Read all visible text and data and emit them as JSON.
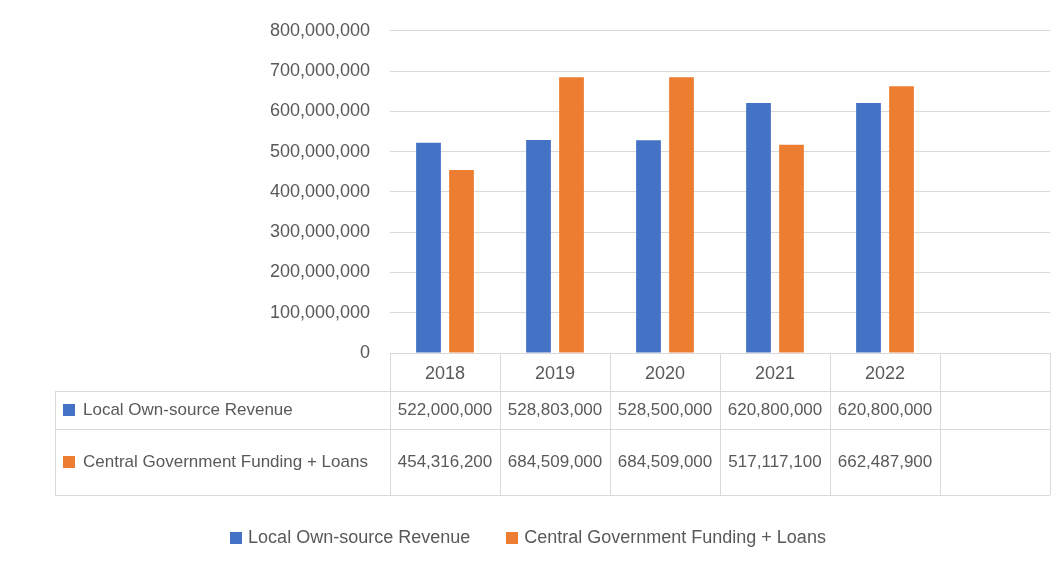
{
  "chart_data": {
    "type": "bar",
    "categories": [
      "2018",
      "2019",
      "2020",
      "2021",
      "2022",
      null
    ],
    "series": [
      {
        "name": "Local Own-source Revenue",
        "color": "#4472c4",
        "values": [
          522000000,
          528803000,
          528500000,
          620800000,
          620800000,
          null
        ],
        "value_labels": [
          "522,000,000",
          "528,803,000",
          "528,500,000",
          "620,800,000",
          "620,800,000",
          null
        ]
      },
      {
        "name": "Central Government Funding + Loans",
        "color": "#ed7d31",
        "values": [
          454316200,
          684509000,
          684509000,
          517117100,
          662487900,
          null
        ],
        "value_labels": [
          "454,316,200",
          "684,509,000",
          "684,509,000",
          "517,117,100",
          "662,487,900",
          null
        ]
      }
    ],
    "ylim": [
      0,
      800000000
    ],
    "yticks": [
      0,
      {
        "value": 100000000,
        "label": "100,000,000"
      },
      {
        "value": 200000000,
        "label": "200,000,000"
      },
      {
        "value": 300000000,
        "label": "300,000,000"
      },
      {
        "value": 400000000,
        "label": "400,000,000"
      },
      {
        "value": 500000000,
        "label": "500,000,000"
      },
      {
        "value": 600000000,
        "label": "600,000,000"
      },
      {
        "value": 700000000,
        "label": "700,000,000"
      },
      {
        "value": 800000000,
        "label": "800,000,000"
      }
    ],
    "grid": "y",
    "legend": "bottom"
  }
}
